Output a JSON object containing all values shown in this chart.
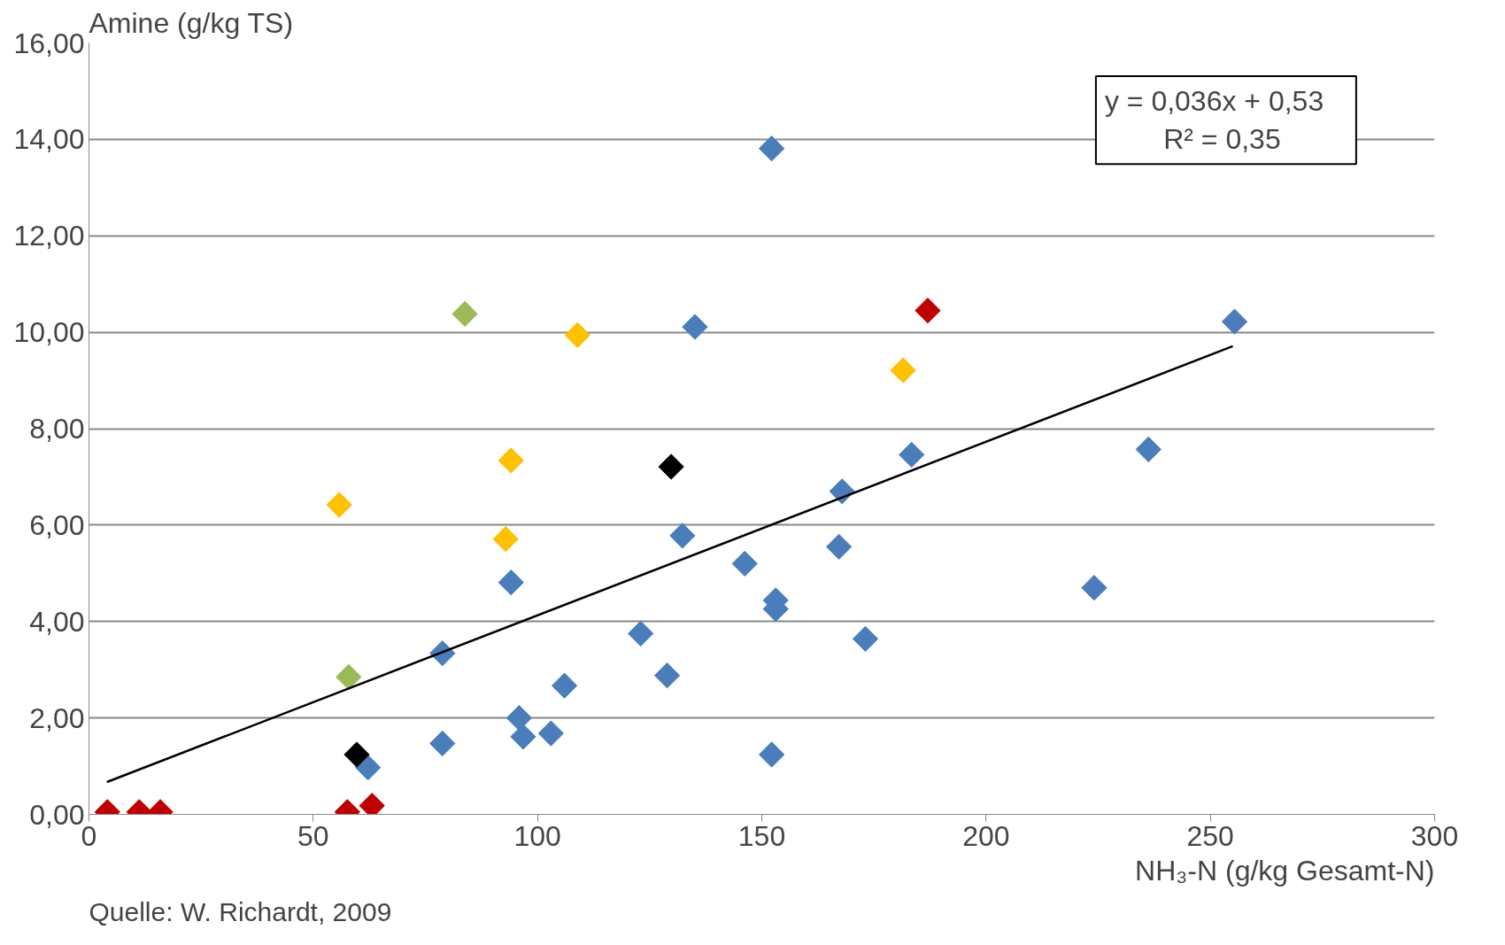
{
  "chart_data": {
    "type": "scatter",
    "ylabel": "Amine (g/kg TS)",
    "xlabel": "NH₃-N (g/kg Gesamt-N)",
    "annotations": [
      "y =  0,036x  +  0,53\nR² =  0,35",
      "Quelle: W. Richardt, 2009"
    ],
    "xlim": [
      0,
      300
    ],
    "xticks": [
      0,
      50,
      100,
      150,
      200,
      250,
      300
    ],
    "ylim": [
      0,
      16
    ],
    "yticks": [
      {
        "value": 0,
        "label": "0,00"
      },
      {
        "value": 2,
        "label": "2,00"
      },
      {
        "value": 4,
        "label": "4,00"
      },
      {
        "value": 6,
        "label": "6,00"
      },
      {
        "value": 8,
        "label": "8,00"
      },
      {
        "value": 10,
        "label": "10,00"
      },
      {
        "value": 12,
        "label": "12,00"
      },
      {
        "value": 14,
        "label": "14,00"
      },
      {
        "value": 16,
        "label": "16,00"
      }
    ],
    "grid": "y",
    "marker": "diamond",
    "series": [
      {
        "color": "#4a7ebb",
        "x": [
          152.2,
          135.1,
          255.4,
          183.4,
          236.2,
          167.9,
          132.3,
          167.2,
          146.2,
          153.1,
          153.1,
          94.1,
          224.1,
          173.1,
          123.0,
          78.8,
          128.9,
          106.0,
          95.9,
          96.8,
          103.0,
          78.8,
          152.2,
          62.2
        ],
        "values": [
          13.81,
          10.11,
          10.22,
          7.46,
          7.57,
          6.7,
          5.78,
          5.55,
          5.2,
          4.44,
          4.26,
          4.81,
          4.7,
          3.64,
          3.75,
          3.34,
          2.88,
          2.67,
          2.0,
          1.61,
          1.68,
          1.47,
          1.24,
          0.97
        ]
      },
      {
        "color": "#ffc000",
        "x": [
          55.8,
          94.1,
          92.9,
          108.9,
          181.5
        ],
        "values": [
          6.42,
          7.34,
          5.71,
          9.94,
          9.21
        ]
      },
      {
        "color": "#9bbb59",
        "x": [
          83.8,
          57.9
        ],
        "values": [
          10.38,
          2.85
        ]
      },
      {
        "color": "#000000",
        "x": [
          129.8,
          59.7
        ],
        "values": [
          7.21,
          1.24
        ]
      },
      {
        "color": "#c00000",
        "x": [
          4.1,
          11.2,
          15.9,
          57.6,
          63.1,
          187.0
        ],
        "values": [
          0.05,
          0.05,
          0.05,
          0.05,
          0.18,
          10.45
        ]
      },
      {
        "type": "line",
        "marker": "none",
        "color": "#000000",
        "x": [
          4,
          255
        ],
        "values": [
          0.67,
          9.71
        ]
      }
    ]
  }
}
